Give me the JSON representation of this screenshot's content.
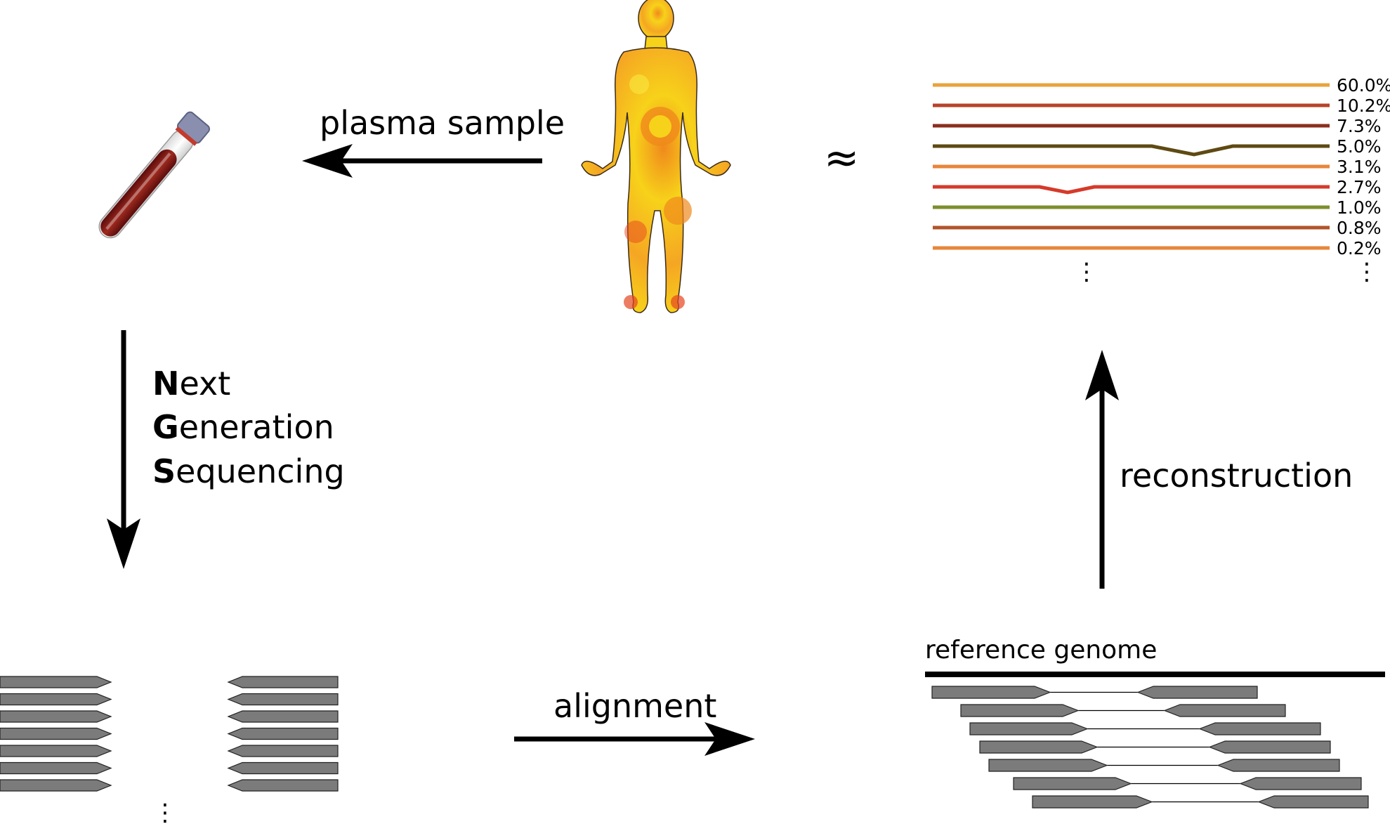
{
  "labels": {
    "plasma_sample": "plasma sample",
    "approx_symbol": "≈",
    "alignment": "alignment",
    "reconstruction": "reconstruction",
    "reference_genome": "reference genome",
    "ellipsis": "⋮"
  },
  "ngs": [
    {
      "initial": "N",
      "rest": "ext"
    },
    {
      "initial": "G",
      "rest": "eneration"
    },
    {
      "initial": "S",
      "rest": "equencing"
    }
  ],
  "haplotypes": [
    {
      "fraction": "60.0%",
      "color": "#e8a33a"
    },
    {
      "fraction": "10.2%",
      "color": "#b5432a"
    },
    {
      "fraction": "7.3%",
      "color": "#8b2e1e"
    },
    {
      "fraction": "5.0%",
      "color": "#5e4a12"
    },
    {
      "fraction": "3.1%",
      "color": "#e8853a"
    },
    {
      "fraction": "2.7%",
      "color": "#d63a2a"
    },
    {
      "fraction": "1.0%",
      "color": "#7c8f2c"
    },
    {
      "fraction": "0.8%",
      "color": "#b2542a"
    },
    {
      "fraction": "0.2%",
      "color": "#e8863a"
    }
  ],
  "colors": {
    "read_fill": "#7b7b7b",
    "arrow": "#000000",
    "body_yellow": "#f7d21a",
    "body_orange": "#f08a1c",
    "body_red": "#e6461f",
    "blood": "#7a1414",
    "cap": "#8a8fb0"
  }
}
